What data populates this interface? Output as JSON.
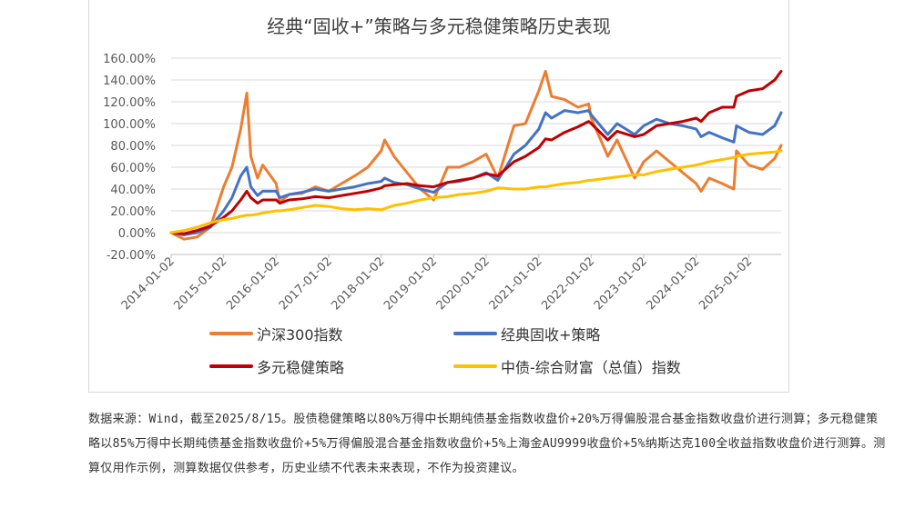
{
  "colors": {
    "csi300": "#ED7D31",
    "classic": "#4472C4",
    "multi": "#C00000",
    "bond": "#FFC000",
    "grid": "#d9d9d9",
    "axis": "#bfbfbf"
  },
  "chart_data": {
    "type": "line",
    "title": "经典“固收+”策略与多元稳健策略历史表现",
    "xlabel": "",
    "ylabel": "",
    "ylim": [
      -0.2,
      1.6
    ],
    "yticks": [
      "-20.00%",
      "0.00%",
      "20.00%",
      "40.00%",
      "60.00%",
      "80.00%",
      "100.00%",
      "120.00%",
      "140.00%",
      "160.00%"
    ],
    "xlim": [
      "2014-01-02",
      "2025-08-15"
    ],
    "xticks": [
      "2014-01-02",
      "2015-01-02",
      "2016-01-02",
      "2017-01-02",
      "2018-01-02",
      "2019-01-02",
      "2020-01-02",
      "2021-01-02",
      "2022-01-02",
      "2023-01-02",
      "2024-01-02",
      "2025-01-02"
    ],
    "grid": true,
    "legend": "bottom",
    "x": [
      "2014-01-02",
      "2014-04-01",
      "2014-07-01",
      "2014-10-01",
      "2015-01-02",
      "2015-03-01",
      "2015-05-01",
      "2015-06-12",
      "2015-07-10",
      "2015-08-26",
      "2015-10-01",
      "2016-01-02",
      "2016-01-28",
      "2016-04-01",
      "2016-07-01",
      "2016-10-01",
      "2017-01-02",
      "2017-04-01",
      "2017-07-01",
      "2017-10-01",
      "2018-01-02",
      "2018-01-26",
      "2018-04-01",
      "2018-07-01",
      "2018-10-01",
      "2019-01-02",
      "2019-04-08",
      "2019-07-01",
      "2019-10-01",
      "2020-01-02",
      "2020-03-23",
      "2020-07-13",
      "2020-10-01",
      "2021-01-02",
      "2021-02-18",
      "2021-04-01",
      "2021-07-01",
      "2021-10-01",
      "2021-12-15",
      "2022-01-02",
      "2022-04-27",
      "2022-07-01",
      "2022-10-31",
      "2023-01-02",
      "2023-04-01",
      "2023-07-01",
      "2023-10-01",
      "2024-01-02",
      "2024-02-05",
      "2024-04-01",
      "2024-07-01",
      "2024-09-20",
      "2024-10-08",
      "2025-01-02",
      "2025-04-08",
      "2025-07-01",
      "2025-08-15"
    ],
    "series": [
      {
        "name": "沪深300指数",
        "values": [
          0.0,
          -0.06,
          -0.04,
          0.05,
          0.42,
          0.6,
          0.95,
          1.28,
          0.7,
          0.5,
          0.62,
          0.45,
          0.28,
          0.35,
          0.36,
          0.42,
          0.38,
          0.45,
          0.52,
          0.6,
          0.75,
          0.85,
          0.7,
          0.55,
          0.4,
          0.3,
          0.6,
          0.6,
          0.65,
          0.72,
          0.5,
          0.98,
          1.0,
          1.3,
          1.48,
          1.25,
          1.22,
          1.15,
          1.18,
          1.05,
          0.7,
          0.85,
          0.5,
          0.65,
          0.75,
          0.65,
          0.55,
          0.45,
          0.38,
          0.5,
          0.45,
          0.4,
          0.75,
          0.62,
          0.58,
          0.68,
          0.8
        ]
      },
      {
        "name": "经典固收+策略",
        "values": [
          0.0,
          -0.02,
          0.0,
          0.05,
          0.2,
          0.32,
          0.52,
          0.6,
          0.42,
          0.34,
          0.38,
          0.38,
          0.32,
          0.35,
          0.37,
          0.4,
          0.38,
          0.4,
          0.42,
          0.45,
          0.47,
          0.5,
          0.46,
          0.44,
          0.4,
          0.37,
          0.46,
          0.47,
          0.5,
          0.55,
          0.48,
          0.72,
          0.8,
          0.95,
          1.1,
          1.05,
          1.12,
          1.1,
          1.12,
          1.08,
          0.9,
          1.0,
          0.9,
          0.98,
          1.04,
          1.0,
          0.98,
          0.95,
          0.88,
          0.92,
          0.87,
          0.83,
          0.98,
          0.92,
          0.9,
          0.98,
          1.1
        ]
      },
      {
        "name": "多元稳健策略",
        "values": [
          0.0,
          -0.01,
          0.02,
          0.06,
          0.14,
          0.2,
          0.3,
          0.38,
          0.32,
          0.27,
          0.3,
          0.3,
          0.27,
          0.3,
          0.31,
          0.33,
          0.32,
          0.34,
          0.36,
          0.38,
          0.41,
          0.43,
          0.44,
          0.45,
          0.43,
          0.42,
          0.46,
          0.48,
          0.5,
          0.54,
          0.52,
          0.65,
          0.7,
          0.78,
          0.86,
          0.85,
          0.92,
          0.97,
          1.02,
          1.0,
          0.85,
          0.93,
          0.88,
          0.9,
          0.98,
          1.0,
          1.02,
          1.05,
          1.02,
          1.1,
          1.15,
          1.15,
          1.25,
          1.3,
          1.32,
          1.4,
          1.48
        ]
      },
      {
        "name": "中债-综合财富（总值）指数",
        "values": [
          0.0,
          0.02,
          0.05,
          0.09,
          0.12,
          0.13,
          0.15,
          0.16,
          0.16,
          0.17,
          0.18,
          0.2,
          0.2,
          0.21,
          0.23,
          0.25,
          0.24,
          0.22,
          0.21,
          0.22,
          0.21,
          0.22,
          0.25,
          0.27,
          0.3,
          0.32,
          0.33,
          0.35,
          0.36,
          0.38,
          0.41,
          0.4,
          0.4,
          0.42,
          0.42,
          0.43,
          0.45,
          0.46,
          0.48,
          0.48,
          0.5,
          0.51,
          0.53,
          0.53,
          0.56,
          0.58,
          0.6,
          0.62,
          0.63,
          0.65,
          0.67,
          0.69,
          0.7,
          0.72,
          0.73,
          0.74,
          0.75
        ]
      }
    ]
  },
  "legend_labels": [
    "沪深300指数",
    "经典固收+策略",
    "多元稳健策略",
    "中债-综合财富（总值）指数"
  ],
  "note": "数据来源：Wind，截至2025/8/15。股债稳健策略以80%万得中长期纯债基金指数收盘价+20%万得偏股混合基金指数收盘价进行测算；多元稳健策略以85%万得中长期纯债基金指数收盘价+5%万得偏股混合基金指数收盘价+5%上海金AU9999收盘价+5%纳斯达克100全收益指数收盘价进行测算。测算仅用作示例，测算数据仅供参考，历史业绩不代表未来表现，不作为投资建议。"
}
